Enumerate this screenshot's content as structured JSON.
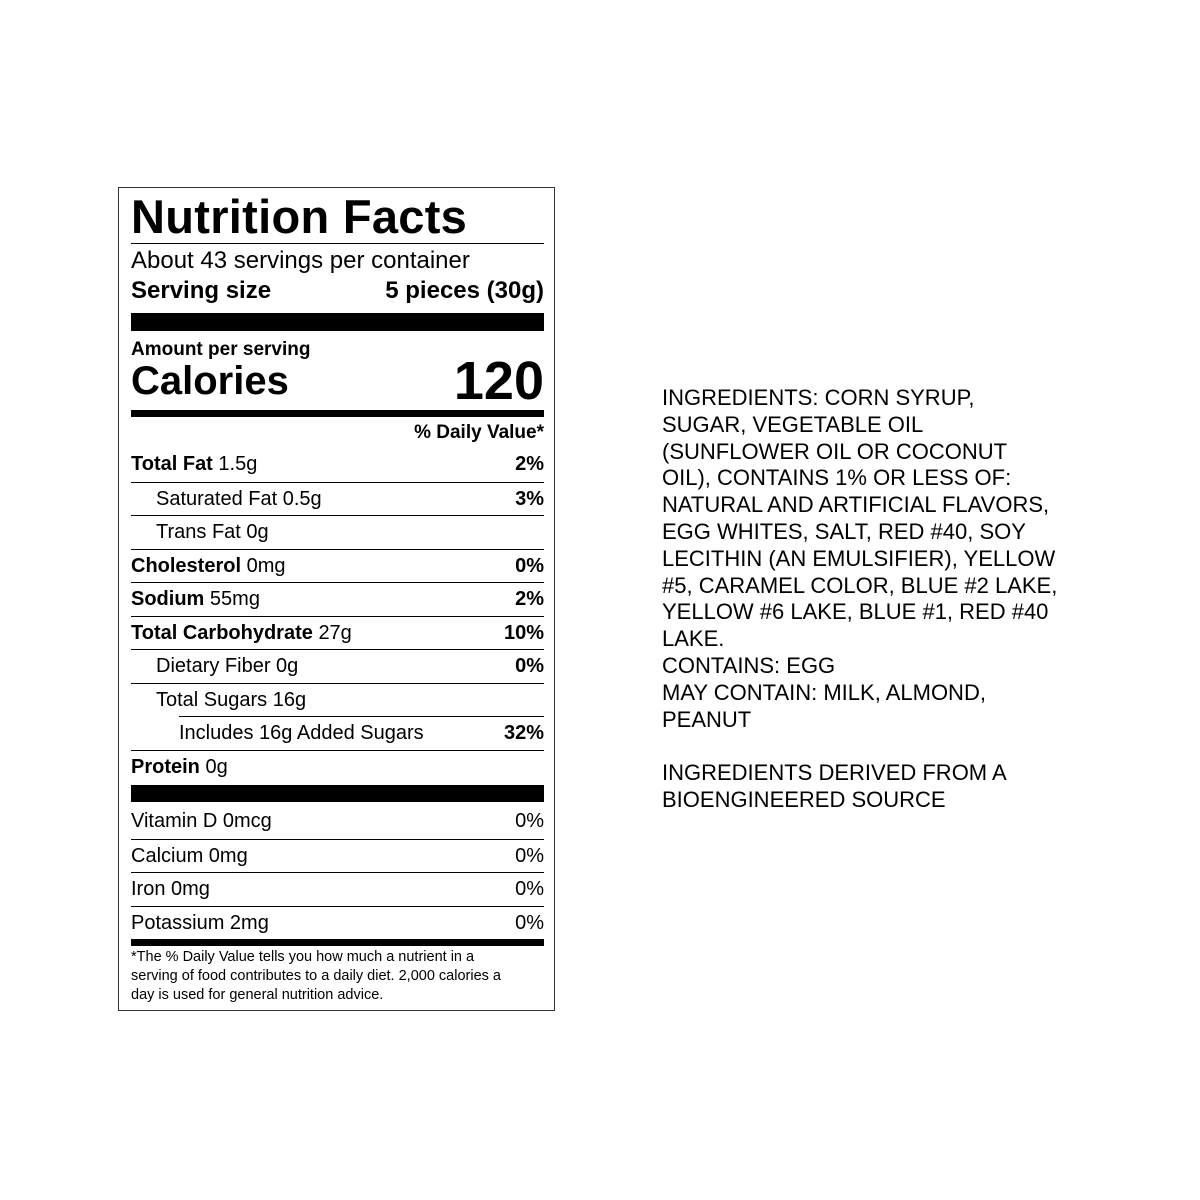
{
  "nutrition": {
    "title": "Nutrition Facts",
    "servings_per_container": "About 43 servings per container",
    "serving_size_label": "Serving size",
    "serving_size_value": "5 pieces (30g)",
    "amount_per_serving": "Amount per serving",
    "calories_label": "Calories",
    "calories_value": "120",
    "daily_value_header": "% Daily Value*",
    "rows": [
      {
        "name": "Total Fat",
        "amount": "1.5g",
        "dv": "2%",
        "bold": true,
        "indent": 0
      },
      {
        "name": "Saturated Fat",
        "amount": "0.5g",
        "dv": "3%",
        "bold": false,
        "indent": 1
      },
      {
        "name": "Trans Fat",
        "amount": "0g",
        "dv": "",
        "bold": false,
        "indent": 1
      },
      {
        "name": "Cholesterol",
        "amount": "0mg",
        "dv": "0%",
        "bold": true,
        "indent": 0
      },
      {
        "name": "Sodium",
        "amount": "55mg",
        "dv": "2%",
        "bold": true,
        "indent": 0
      },
      {
        "name": "Total Carbohydrate",
        "amount": "27g",
        "dv": "10%",
        "bold": true,
        "indent": 0
      },
      {
        "name": "Dietary Fiber",
        "amount": "0g",
        "dv": "0%",
        "bold": false,
        "indent": 1
      },
      {
        "name": "Total Sugars",
        "amount": "16g",
        "dv": "",
        "bold": false,
        "indent": 1
      },
      {
        "name": "Includes 16g Added Sugars",
        "amount": "",
        "dv": "32%",
        "bold": false,
        "indent": 2
      },
      {
        "name": "Protein",
        "amount": "0g",
        "dv": "",
        "bold": true,
        "indent": 0
      }
    ],
    "vitamins": [
      {
        "name": "Vitamin D 0mcg",
        "dv": "0%"
      },
      {
        "name": "Calcium 0mg",
        "dv": "0%"
      },
      {
        "name": "Iron 0mg",
        "dv": "0%"
      },
      {
        "name": "Potassium 2mg",
        "dv": "0%"
      }
    ],
    "footnote_lines": [
      "*The % Daily Value tells you how much a nutrient in a",
      "serving of food contributes to a daily diet. 2,000 calories a",
      "day is used for general nutrition advice."
    ]
  },
  "ingredients_lines": [
    "INGREDIENTS: CORN SYRUP,",
    "SUGAR, VEGETABLE OIL",
    "(SUNFLOWER OIL OR COCONUT",
    "OIL), CONTAINS 1% OR LESS OF:",
    "NATURAL AND ARTIFICIAL FLAVORS,",
    "EGG WHITES, SALT, RED #40, SOY",
    "LECITHIN (AN EMULSIFIER), YELLOW",
    "#5, CARAMEL COLOR, BLUE #2 LAKE,",
    "YELLOW #6 LAKE, BLUE #1, RED #40",
    "LAKE.",
    "CONTAINS: EGG",
    "MAY CONTAIN: MILK, ALMOND,",
    "PEANUT",
    "",
    "INGREDIENTS DERIVED FROM A",
    "BIOENGINEERED SOURCE"
  ]
}
